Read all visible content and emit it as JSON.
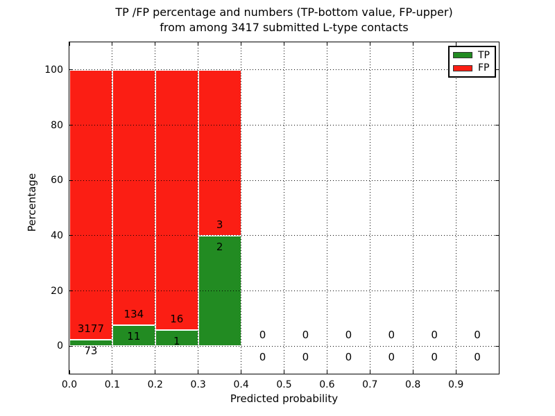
{
  "figure": {
    "title_line1": "TP /FP percentage and numbers (TP-bottom value, FP-upper)",
    "title_line2": "from among 3417 submitted L-type contacts",
    "xlabel": "Predicted probability",
    "ylabel": "Percentage"
  },
  "legend": {
    "items": [
      {
        "label": "TP",
        "color": "#228b22"
      },
      {
        "label": "FP",
        "color": "#fb1e14"
      }
    ]
  },
  "colors": {
    "tp_bar": "#228b22",
    "fp_bar": "#fb1e14",
    "bar_edge": "#ffffff",
    "grid": "#000000",
    "text": "#000000"
  },
  "chart_data": {
    "type": "bar",
    "stacked": true,
    "title": "TP /FP percentage and numbers (TP-bottom value, FP-upper) from among 3417 submitted L-type contacts",
    "xlabel": "Predicted probability",
    "ylabel": "Percentage",
    "xlim": [
      0.0,
      1.0
    ],
    "ylim": [
      -10,
      110
    ],
    "x_tick_labels": [
      "0.0",
      "0.1",
      "0.2",
      "0.3",
      "0.4",
      "0.5",
      "0.6",
      "0.7",
      "0.8",
      "0.9"
    ],
    "y_tick_labels": [
      "0",
      "20",
      "40",
      "60",
      "80",
      "100"
    ],
    "grid": "dotted",
    "legend_position": "upper right",
    "total_submitted": 3417,
    "bin_width": 0.1,
    "bins": [
      {
        "range": [
          0.0,
          0.1
        ],
        "tp": 73,
        "fp": 3177
      },
      {
        "range": [
          0.1,
          0.2
        ],
        "tp": 11,
        "fp": 134
      },
      {
        "range": [
          0.2,
          0.3
        ],
        "tp": 1,
        "fp": 16
      },
      {
        "range": [
          0.3,
          0.4
        ],
        "tp": 2,
        "fp": 3
      },
      {
        "range": [
          0.4,
          0.5
        ],
        "tp": 0,
        "fp": 0
      },
      {
        "range": [
          0.5,
          0.6
        ],
        "tp": 0,
        "fp": 0
      },
      {
        "range": [
          0.6,
          0.7
        ],
        "tp": 0,
        "fp": 0
      },
      {
        "range": [
          0.7,
          0.8
        ],
        "tp": 0,
        "fp": 0
      },
      {
        "range": [
          0.8,
          0.9
        ],
        "tp": 0,
        "fp": 0
      },
      {
        "range": [
          0.9,
          1.0
        ],
        "tp": 0,
        "fp": 0
      }
    ],
    "series": [
      {
        "name": "TP",
        "values_pct": [
          2.25,
          7.59,
          5.88,
          40.0,
          0,
          0,
          0,
          0,
          0,
          0
        ]
      },
      {
        "name": "FP",
        "values_pct": [
          97.75,
          92.41,
          94.12,
          60.0,
          0,
          0,
          0,
          0,
          0,
          0
        ]
      }
    ]
  }
}
